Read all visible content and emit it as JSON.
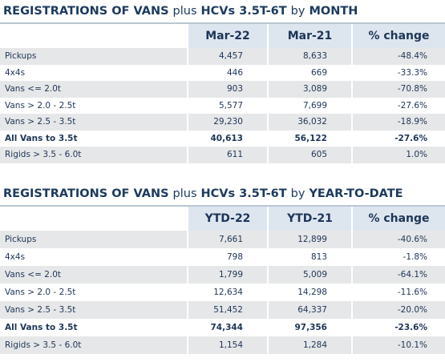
{
  "tables": [
    {
      "title": [
        "REGISTRATIONS OF VANS",
        "plus",
        "HCVs 3.5T-6T",
        "by",
        "MONTH"
      ],
      "header": [
        "Mar-22",
        "Mar-21",
        "% change"
      ],
      "rows": [
        [
          "Pickups",
          "4,457",
          "8,633",
          "-48.4%"
        ],
        [
          "4x4s",
          "446",
          "669",
          "-33.3%"
        ],
        [
          "Vans <= 2.0t",
          "903",
          "3,089",
          "-70.8%"
        ],
        [
          "Vans > 2.0 - 2.5t",
          "5,577",
          "7,699",
          "-27.6%"
        ],
        [
          "Vans > 2.5 - 3.5t",
          "29,230",
          "36,032",
          "-18.9%"
        ],
        [
          "All Vans to 3.5t",
          "40,613",
          "56,122",
          "-27.6%"
        ],
        [
          "Rigids > 3.5 - 6.0t",
          "611",
          "605",
          "1.0%"
        ]
      ]
    },
    {
      "title": [
        "REGISTRATIONS OF VANS",
        "plus",
        "HCVs 3.5T-6T",
        "by",
        "YEAR-TO-DATE"
      ],
      "header": [
        "YTD-22",
        "YTD-21",
        "% change"
      ],
      "rows": [
        [
          "Pickups",
          "7,661",
          "12,899",
          "-40.6%"
        ],
        [
          "4x4s",
          "798",
          "813",
          "-1.8%"
        ],
        [
          "Vans <= 2.0t",
          "1,799",
          "5,009",
          "-64.1%"
        ],
        [
          "Vans > 2.0 - 2.5t",
          "12,634",
          "14,298",
          "-11.6%"
        ],
        [
          "Vans > 2.5 - 3.5t",
          "51,452",
          "64,337",
          "-20.0%"
        ],
        [
          "All Vans to 3.5t",
          "74,344",
          "97,356",
          "-23.6%"
        ],
        [
          "Rigids > 3.5 - 6.0t",
          "1,154",
          "1,284",
          "-10.1%"
        ]
      ]
    }
  ]
}
